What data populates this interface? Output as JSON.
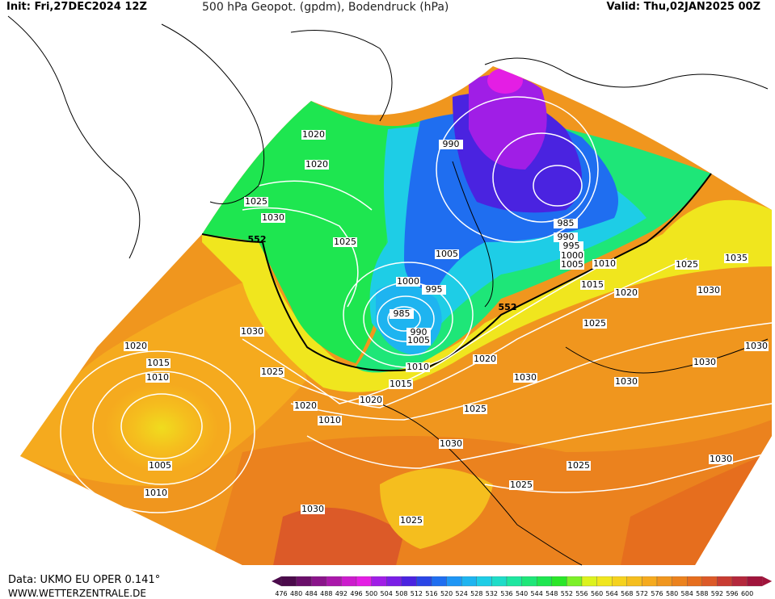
{
  "header": {
    "init": "Init: Fri,27DEC2024 12Z",
    "title": "500 hPa Geopot. (gpdm), Bodendruck (hPa)",
    "valid": "Valid: Thu,02JAN2025 00Z"
  },
  "footer": {
    "source": "Data: UKMO EU OPER 0.141°",
    "site": "WWW.WETTERZENTRALE.DE"
  },
  "legend": {
    "values": [
      "476",
      "480",
      "484",
      "488",
      "492",
      "496",
      "500",
      "504",
      "508",
      "512",
      "516",
      "520",
      "524",
      "528",
      "532",
      "536",
      "540",
      "544",
      "548",
      "552",
      "556",
      "560",
      "564",
      "568",
      "572",
      "576",
      "580",
      "584",
      "588",
      "592",
      "596",
      "600"
    ],
    "colors": [
      "#4b0a4b",
      "#6a0f6a",
      "#8a148a",
      "#aa18aa",
      "#cc1ccc",
      "#e41ee4",
      "#a01ee6",
      "#7a1ee6",
      "#4a23e0",
      "#2a46e6",
      "#1f6ef0",
      "#1e96f5",
      "#1eb4f0",
      "#1ecde6",
      "#1edcc8",
      "#1ee6a0",
      "#1ee678",
      "#1ee650",
      "#2ae628",
      "#7cf028",
      "#dcf21e",
      "#f0e61e",
      "#f5d21e",
      "#f5be1e",
      "#f5aa1e",
      "#f0961e",
      "#eb821e",
      "#e66e1e",
      "#dc5a28",
      "#c83c32",
      "#b4283c",
      "#a0143c"
    ]
  },
  "pressure_labels": [
    "1020",
    "1020",
    "1025",
    "1030",
    "1025",
    "990",
    "985",
    "990",
    "995",
    "1000",
    "1005",
    "1010",
    "1025",
    "1035",
    "1030",
    "1020",
    "1015",
    "1025",
    "1005",
    "1000",
    "995",
    "985",
    "990",
    "1005",
    "1010",
    "1015",
    "1020",
    "1020",
    "1030",
    "1030",
    "1030",
    "1030",
    "1025",
    "1010",
    "1015",
    "1020",
    "1020",
    "1010",
    "1005",
    "1010",
    "1025",
    "1030",
    "1030",
    "1025",
    "1025",
    "1030",
    "1030",
    "1025"
  ],
  "geopotential_labels": [
    "552",
    "552"
  ],
  "colors": {
    "green": "#1ee650",
    "cyan": "#1ecde6",
    "blue": "#2a46e6",
    "purple": "#a01ee6",
    "orange": "#f0961e",
    "yellow": "#f0e61e"
  }
}
